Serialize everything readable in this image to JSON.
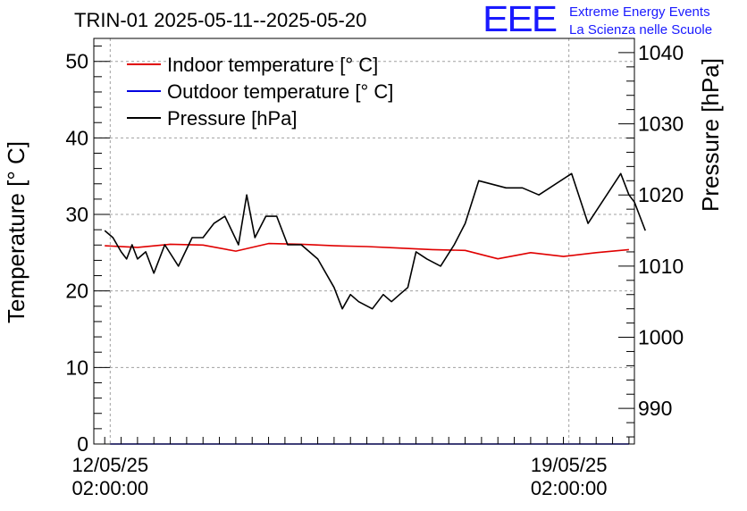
{
  "title": "TRIN-01 2025-05-11--2025-05-20",
  "logo": {
    "letters": "EEE",
    "line1": "Extreme Energy Events",
    "line2": "La Scienza nelle Scuole"
  },
  "colors": {
    "indoor": "#e00000",
    "outdoor": "#0000e0",
    "pressure": "#000000",
    "logo": "#1a1aff"
  },
  "chart_data": {
    "type": "line",
    "title": "TRIN-01 2025-05-11--2025-05-20",
    "x_type": "datetime",
    "x_range": [
      "2025-05-11T20:00:00",
      "2025-05-20T02:00:00"
    ],
    "x_ticks": [
      {
        "value": "2025-05-12T02:00:00",
        "line1": "12/05/25",
        "line2": "02:00:00"
      },
      {
        "value": "2025-05-19T02:00:00",
        "line1": "19/05/25",
        "line2": "02:00:00"
      }
    ],
    "y_left": {
      "label": "Temperature [° C]",
      "range": [
        0,
        53
      ],
      "ticks": [
        0,
        10,
        20,
        30,
        40,
        50
      ]
    },
    "y_right": {
      "label": "Pressure [hPa]",
      "range": [
        985,
        1042
      ],
      "ticks": [
        990,
        1000,
        1010,
        1020,
        1030,
        1040
      ]
    },
    "grid": true,
    "legend_position": "top-left",
    "legend": [
      {
        "label": "Indoor temperature [° C]",
        "color": "#e00000"
      },
      {
        "label": "Outdoor temperature [° C]",
        "color": "#0000e0"
      },
      {
        "label": "Pressure [hPa]",
        "color": "#000000"
      }
    ],
    "series": [
      {
        "name": "Indoor temperature [° C]",
        "axis": "left",
        "color": "#e00000",
        "points": [
          [
            "2025-05-12T00:00:00",
            25.9
          ],
          [
            "2025-05-12T12:00:00",
            25.7
          ],
          [
            "2025-05-13T00:00:00",
            26.1
          ],
          [
            "2025-05-13T12:00:00",
            26.0
          ],
          [
            "2025-05-14T00:00:00",
            25.2
          ],
          [
            "2025-05-14T12:00:00",
            26.2
          ],
          [
            "2025-05-15T00:00:00",
            26.1
          ],
          [
            "2025-05-15T12:00:00",
            25.9
          ],
          [
            "2025-05-16T00:00:00",
            25.8
          ],
          [
            "2025-05-16T12:00:00",
            25.6
          ],
          [
            "2025-05-17T00:00:00",
            25.4
          ],
          [
            "2025-05-17T12:00:00",
            25.3
          ],
          [
            "2025-05-18T00:00:00",
            24.2
          ],
          [
            "2025-05-18T12:00:00",
            25.0
          ],
          [
            "2025-05-19T00:00:00",
            24.5
          ],
          [
            "2025-05-19T12:00:00",
            25.0
          ],
          [
            "2025-05-20T00:00:00",
            25.4
          ]
        ]
      },
      {
        "name": "Outdoor temperature [° C]",
        "axis": "left",
        "color": "#0000e0",
        "points": [
          [
            "2025-05-12T02:00:00",
            0.0
          ],
          [
            "2025-05-20T00:00:00",
            0.0
          ]
        ]
      },
      {
        "name": "Pressure [hPa]",
        "axis": "right",
        "color": "#000000",
        "points": [
          [
            "2025-05-12T00:00:00",
            1015.0
          ],
          [
            "2025-05-12T03:00:00",
            1014.0
          ],
          [
            "2025-05-12T06:00:00",
            1012.0
          ],
          [
            "2025-05-12T08:00:00",
            1011.0
          ],
          [
            "2025-05-12T10:00:00",
            1013.0
          ],
          [
            "2025-05-12T12:00:00",
            1011.0
          ],
          [
            "2025-05-12T15:00:00",
            1012.0
          ],
          [
            "2025-05-12T18:00:00",
            1009.0
          ],
          [
            "2025-05-12T22:00:00",
            1013.0
          ],
          [
            "2025-05-13T03:00:00",
            1010.0
          ],
          [
            "2025-05-13T08:00:00",
            1014.0
          ],
          [
            "2025-05-13T12:00:00",
            1014.0
          ],
          [
            "2025-05-13T16:00:00",
            1016.0
          ],
          [
            "2025-05-13T20:00:00",
            1017.0
          ],
          [
            "2025-05-14T01:00:00",
            1013.0
          ],
          [
            "2025-05-14T04:00:00",
            1020.0
          ],
          [
            "2025-05-14T07:00:00",
            1014.0
          ],
          [
            "2025-05-14T11:00:00",
            1017.0
          ],
          [
            "2025-05-14T15:00:00",
            1017.0
          ],
          [
            "2025-05-14T19:00:00",
            1013.0
          ],
          [
            "2025-05-15T00:00:00",
            1013.0
          ],
          [
            "2025-05-15T06:00:00",
            1011.0
          ],
          [
            "2025-05-15T12:00:00",
            1007.0
          ],
          [
            "2025-05-15T15:00:00",
            1004.0
          ],
          [
            "2025-05-15T18:00:00",
            1006.0
          ],
          [
            "2025-05-15T21:00:00",
            1005.0
          ],
          [
            "2025-05-16T02:00:00",
            1004.0
          ],
          [
            "2025-05-16T06:00:00",
            1006.0
          ],
          [
            "2025-05-16T09:00:00",
            1005.0
          ],
          [
            "2025-05-16T12:00:00",
            1006.0
          ],
          [
            "2025-05-16T15:00:00",
            1007.0
          ],
          [
            "2025-05-16T18:00:00",
            1012.0
          ],
          [
            "2025-05-16T22:00:00",
            1011.0
          ],
          [
            "2025-05-17T03:00:00",
            1010.0
          ],
          [
            "2025-05-17T08:00:00",
            1013.0
          ],
          [
            "2025-05-17T12:00:00",
            1016.0
          ],
          [
            "2025-05-17T17:00:00",
            1022.0
          ],
          [
            "2025-05-18T03:00:00",
            1021.0
          ],
          [
            "2025-05-18T09:00:00",
            1021.0
          ],
          [
            "2025-05-18T15:00:00",
            1020.0
          ],
          [
            "2025-05-19T03:00:00",
            1023.0
          ],
          [
            "2025-05-19T09:00:00",
            1016.0
          ],
          [
            "2025-05-19T21:00:00",
            1023.0
          ],
          [
            "2025-05-20T00:00:00",
            1020.0
          ],
          [
            "2025-05-20T02:00:00",
            1019.0
          ],
          [
            "2025-05-20T04:00:00",
            1017.0
          ],
          [
            "2025-05-20T06:00:00",
            1015.0
          ]
        ]
      }
    ]
  }
}
